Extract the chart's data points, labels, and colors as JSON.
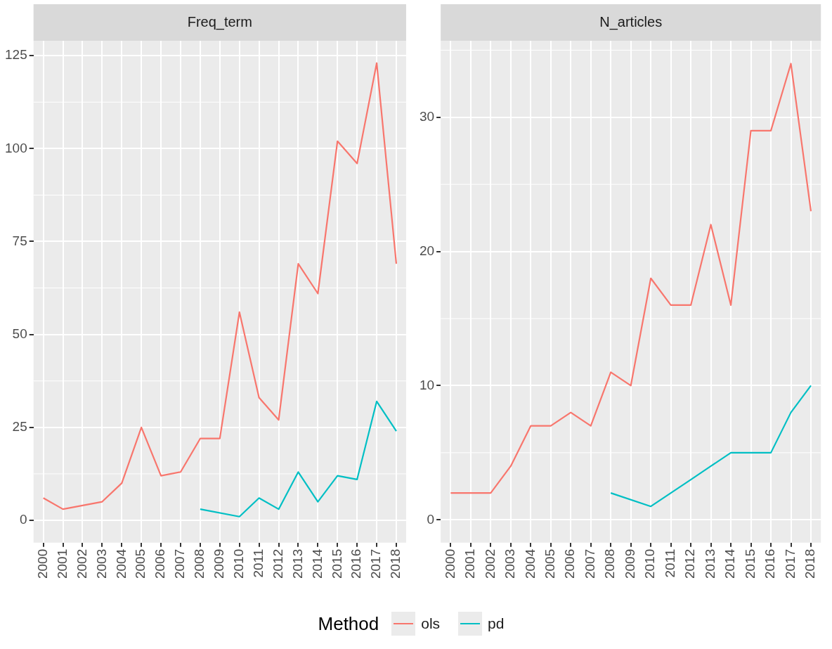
{
  "chart_data": [
    {
      "type": "line",
      "title": "Freq_term",
      "categories": [
        "2000",
        "2001",
        "2002",
        "2003",
        "2004",
        "2005",
        "2006",
        "2007",
        "2008",
        "2009",
        "2010",
        "2011",
        "2012",
        "2013",
        "2014",
        "2015",
        "2016",
        "2017",
        "2018"
      ],
      "ylim": [
        -6,
        129
      ],
      "yticks": [
        0,
        25,
        50,
        75,
        100,
        125
      ],
      "grid": true,
      "legend": "bottom",
      "legend_title": "Method",
      "series": [
        {
          "name": "ols",
          "color": "#f8766d",
          "values": [
            6,
            3,
            4,
            5,
            10,
            25,
            12,
            13,
            22,
            22,
            56,
            33,
            27,
            69,
            61,
            102,
            96,
            123,
            69
          ]
        },
        {
          "name": "pd",
          "color": "#00bfc4",
          "values": [
            null,
            null,
            null,
            null,
            null,
            null,
            null,
            null,
            3,
            null,
            1,
            6,
            3,
            13,
            5,
            12,
            11,
            32,
            24
          ]
        }
      ]
    },
    {
      "type": "line",
      "title": "N_articles",
      "categories": [
        "2000",
        "2001",
        "2002",
        "2003",
        "2004",
        "2005",
        "2006",
        "2007",
        "2008",
        "2009",
        "2010",
        "2011",
        "2012",
        "2013",
        "2014",
        "2015",
        "2016",
        "2017",
        "2018"
      ],
      "ylim": [
        -1.7,
        35.7
      ],
      "yticks": [
        0,
        10,
        20,
        30
      ],
      "grid": true,
      "series": [
        {
          "color": "#f8766d",
          "values": [
            2,
            2,
            2,
            4,
            7,
            7,
            8,
            7,
            11,
            10,
            18,
            16,
            16,
            22,
            16,
            29,
            29,
            34,
            23
          ]
        },
        {
          "color": "#00bfc4",
          "values": [
            null,
            null,
            null,
            null,
            null,
            null,
            null,
            null,
            2,
            null,
            1,
            2,
            3,
            4,
            5,
            5,
            5,
            8,
            10
          ]
        }
      ]
    }
  ]
}
